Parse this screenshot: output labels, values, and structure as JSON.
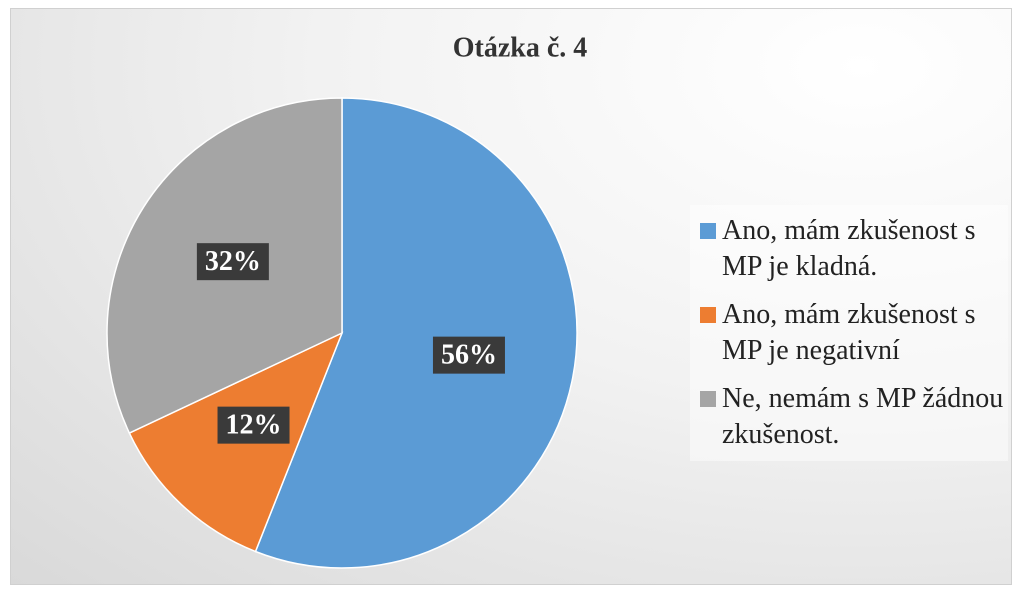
{
  "chart_data": {
    "type": "pie",
    "title": "Otázka č. 4",
    "categories": [
      "Ano, mám zkušenost s MP je kladná.",
      "Ano, mám zkušenost s MP je negativní",
      "Ne, nemám s MP žádnou zkušenost."
    ],
    "values": [
      56,
      12,
      32
    ],
    "value_labels": [
      "56%",
      "12%",
      "32%"
    ],
    "colors": [
      "#5b9bd5",
      "#ed7d31",
      "#a5a5a5"
    ],
    "legend": "right"
  }
}
